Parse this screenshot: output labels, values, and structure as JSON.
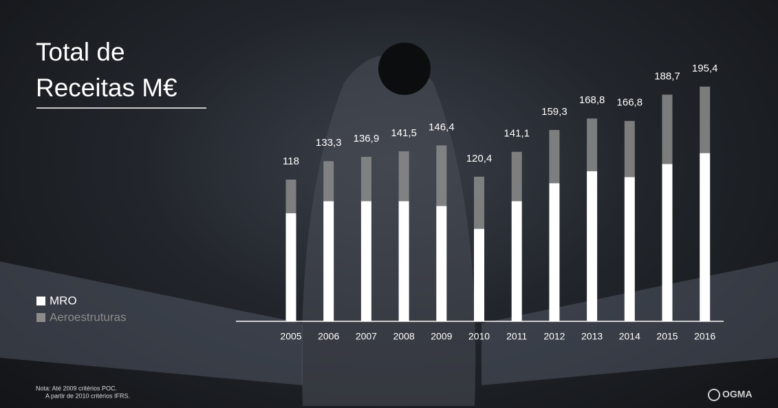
{
  "chart_data": {
    "type": "stacked-bar",
    "title": "Total de Receitas M€",
    "categories": [
      "2005",
      "2006",
      "2007",
      "2008",
      "2009",
      "2010",
      "2011",
      "2012",
      "2013",
      "2014",
      "2015",
      "2016"
    ],
    "series": [
      {
        "name": "MRO",
        "color": "#ffffff",
        "values": [
          90,
          100,
          100,
          100,
          96,
          77,
          100,
          115,
          125,
          120,
          131,
          140
        ]
      },
      {
        "name": "Aeroestruturas",
        "color": "#8c8c8c",
        "values": [
          28,
          33.3,
          36.9,
          41.5,
          50.4,
          43.4,
          41.1,
          44.3,
          43.8,
          46.8,
          57.7,
          55.4
        ]
      }
    ],
    "totals": [
      118,
      133.3,
      136.9,
      141.5,
      146.4,
      120.4,
      141.1,
      159.3,
      168.8,
      166.8,
      188.7,
      195.4
    ],
    "total_labels": [
      "118",
      "133,3",
      "136,9",
      "141,5",
      "146,4",
      "120,4",
      "141,1",
      "159,3",
      "168,8",
      "166,8",
      "188,7",
      "195,4"
    ],
    "notes": [
      "Nota: Até 2009 critérios POC.",
      "A partir de 2010 critérios IFRS."
    ],
    "logo": "OGMA"
  }
}
